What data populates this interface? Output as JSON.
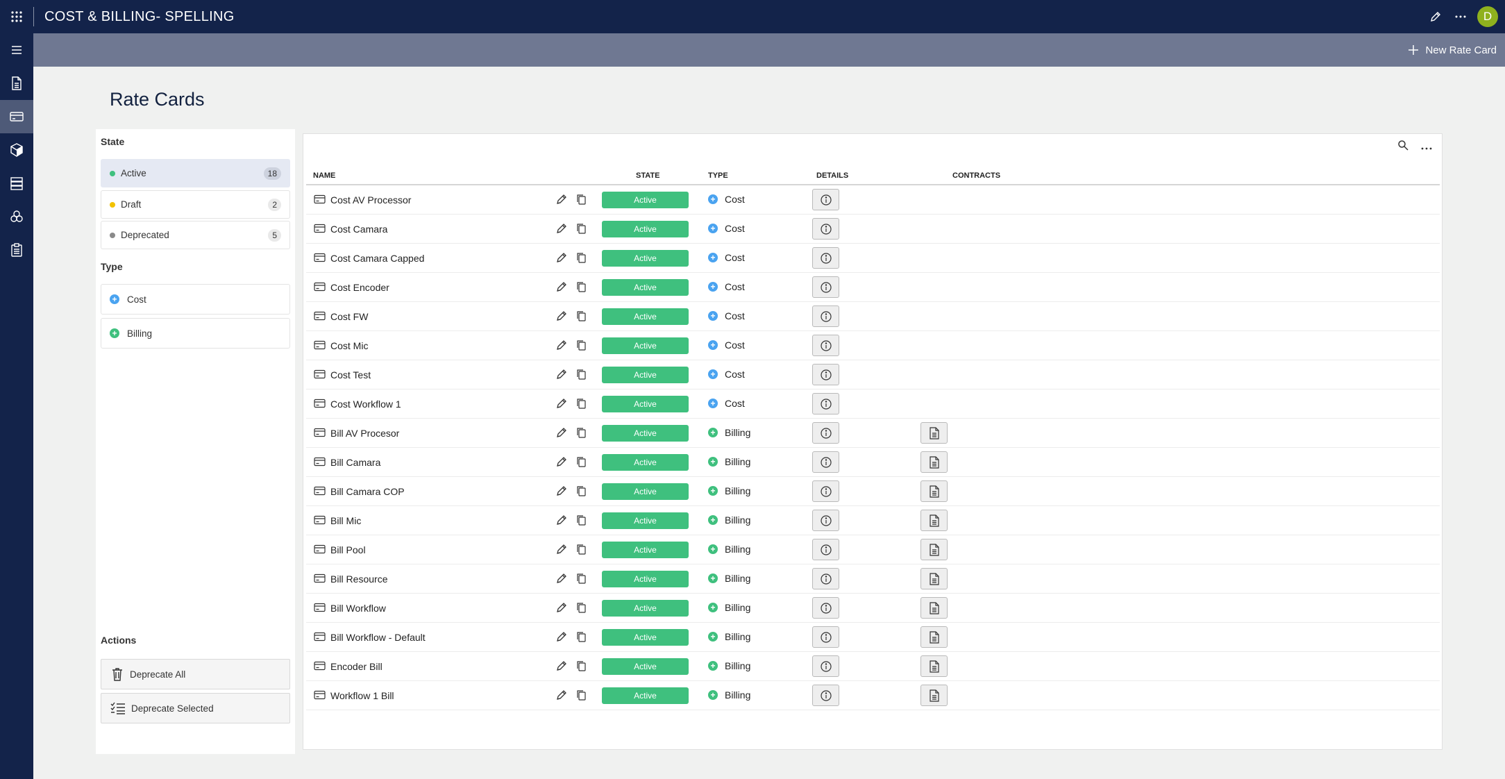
{
  "app": {
    "title": "COST & BILLING- SPELLING",
    "avatar_initial": "D"
  },
  "command_bar": {
    "new_label": "New Rate Card"
  },
  "page": {
    "title": "Rate Cards"
  },
  "filters": {
    "state_title": "State",
    "states": [
      {
        "label": "Active",
        "count": "18",
        "color": "#3fc07e"
      },
      {
        "label": "Draft",
        "count": "2",
        "color": "#f2c200"
      },
      {
        "label": "Deprecated",
        "count": "5",
        "color": "#8a8a8a"
      }
    ],
    "type_title": "Type",
    "types": [
      {
        "label": "Cost",
        "color": "#4aa3f0"
      },
      {
        "label": "Billing",
        "color": "#3fc07e"
      }
    ],
    "actions_title": "Actions",
    "actions": [
      {
        "label": "Deprecate All",
        "icon": "trash-icon"
      },
      {
        "label": "Deprecate Selected",
        "icon": "checklist-icon"
      }
    ]
  },
  "grid": {
    "columns": {
      "name": "NAME",
      "state": "STATE",
      "type": "TYPE",
      "details": "DETAILS",
      "contracts": "CONTRACTS"
    },
    "rows": [
      {
        "name": "Cost AV Processor",
        "state": "Active",
        "type": "Cost",
        "contracts": false
      },
      {
        "name": "Cost Camara",
        "state": "Active",
        "type": "Cost",
        "contracts": false
      },
      {
        "name": "Cost Camara Capped",
        "state": "Active",
        "type": "Cost",
        "contracts": false
      },
      {
        "name": "Cost Encoder",
        "state": "Active",
        "type": "Cost",
        "contracts": false
      },
      {
        "name": "Cost FW",
        "state": "Active",
        "type": "Cost",
        "contracts": false
      },
      {
        "name": "Cost Mic",
        "state": "Active",
        "type": "Cost",
        "contracts": false
      },
      {
        "name": "Cost Test",
        "state": "Active",
        "type": "Cost",
        "contracts": false
      },
      {
        "name": "Cost Workflow 1",
        "state": "Active",
        "type": "Cost",
        "contracts": false
      },
      {
        "name": "Bill AV Procesor",
        "state": "Active",
        "type": "Billing",
        "contracts": true
      },
      {
        "name": "Bill Camara",
        "state": "Active",
        "type": "Billing",
        "contracts": true
      },
      {
        "name": "Bill Camara COP",
        "state": "Active",
        "type": "Billing",
        "contracts": true
      },
      {
        "name": "Bill Mic",
        "state": "Active",
        "type": "Billing",
        "contracts": true
      },
      {
        "name": "Bill Pool",
        "state": "Active",
        "type": "Billing",
        "contracts": true
      },
      {
        "name": "Bill Resource",
        "state": "Active",
        "type": "Billing",
        "contracts": true
      },
      {
        "name": "Bill Workflow",
        "state": "Active",
        "type": "Billing",
        "contracts": true
      },
      {
        "name": "Bill Workflow - Default",
        "state": "Active",
        "type": "Billing",
        "contracts": true
      },
      {
        "name": "Encoder Bill",
        "state": "Active",
        "type": "Billing",
        "contracts": true
      },
      {
        "name": "Workflow 1 Bill",
        "state": "Active",
        "type": "Billing",
        "contracts": true
      }
    ]
  },
  "colors": {
    "header": "#13234a",
    "command_bar": "#6f7892",
    "active_badge": "#3fc07e",
    "cost": "#4aa3f0",
    "billing": "#3fc07e"
  }
}
